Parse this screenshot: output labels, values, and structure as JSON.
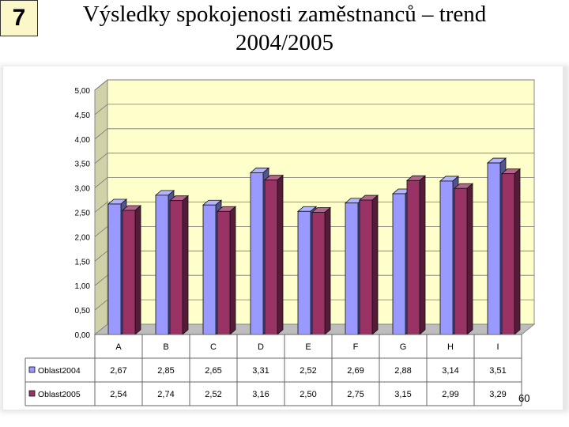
{
  "slide": {
    "number": "7"
  },
  "title": {
    "line1": "Výsledky spokojenosti zaměstnanců – trend",
    "line2": "2004/2005"
  },
  "page_number": "60",
  "colors": {
    "series_2004": "#9999ff",
    "series_2005": "#993366",
    "plot_background": "#ffffcc"
  },
  "chart_data": {
    "type": "bar",
    "categories": [
      "A",
      "B",
      "C",
      "D",
      "E",
      "F",
      "G",
      "H",
      "I"
    ],
    "series": [
      {
        "name": "Oblast2004",
        "values": [
          2.67,
          2.85,
          2.65,
          3.31,
          2.52,
          2.69,
          2.88,
          3.14,
          3.51
        ],
        "labels": [
          "2,67",
          "2,85",
          "2,65",
          "3,31",
          "2,52",
          "2,69",
          "2,88",
          "3,14",
          "3,51"
        ]
      },
      {
        "name": "Oblast2005",
        "values": [
          2.54,
          2.74,
          2.52,
          3.16,
          2.5,
          2.75,
          3.15,
          2.99,
          3.29
        ],
        "labels": [
          "2,54",
          "2,74",
          "2,52",
          "3,16",
          "2,50",
          "2,75",
          "3,15",
          "2,99",
          "3,29"
        ]
      }
    ],
    "ylim": [
      0,
      5
    ],
    "yticks": [
      "0,00",
      "0,50",
      "1,00",
      "1,50",
      "2,00",
      "2,50",
      "3,00",
      "3,50",
      "4,00",
      "4,50",
      "5,00"
    ],
    "grid": true,
    "legend": "data table below chart",
    "title": "",
    "xlabel": "",
    "ylabel": ""
  }
}
